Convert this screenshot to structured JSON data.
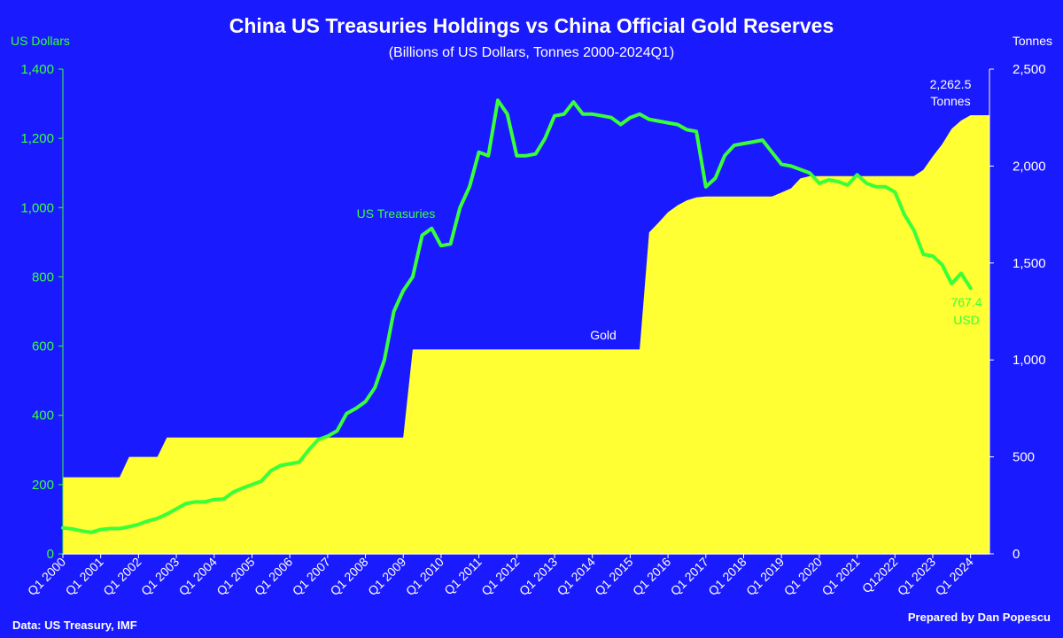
{
  "chart_data": {
    "type": "area",
    "title": "China US Treasuries Holdings vs China Official Gold Reserves",
    "subtitle": "(Billions of US Dollars, Tonnes 2000-2024Q1)",
    "left_axis": {
      "label": "US Dollars",
      "range": [
        0,
        1400
      ],
      "ticks": [
        "0",
        "200",
        "400",
        "600",
        "800",
        "1,000",
        "1,200",
        "1,400"
      ],
      "values": [
        0,
        200,
        400,
        600,
        800,
        1000,
        1200,
        1400
      ]
    },
    "right_axis": {
      "label": "Tonnes",
      "range": [
        0,
        2500
      ],
      "ticks": [
        "0",
        "500",
        "1,000",
        "1,500",
        "2,000",
        "2,500"
      ],
      "values": [
        0,
        500,
        1000,
        1500,
        2000,
        2500
      ]
    },
    "x_range": [
      2000.0,
      2024.5
    ],
    "x_ticks": [
      {
        "t": 2000,
        "label": "Q1 2000"
      },
      {
        "t": 2001,
        "label": "Q1 2001"
      },
      {
        "t": 2002,
        "label": "Q1 2002"
      },
      {
        "t": 2003,
        "label": "Q1 2003"
      },
      {
        "t": 2004,
        "label": "Q1 2004"
      },
      {
        "t": 2005,
        "label": "Q1 2005"
      },
      {
        "t": 2006,
        "label": "Q1 2006"
      },
      {
        "t": 2007,
        "label": "Q1 2007"
      },
      {
        "t": 2008,
        "label": "Q1 2008"
      },
      {
        "t": 2009,
        "label": "Q1 2009"
      },
      {
        "t": 2010,
        "label": "Q1 2010"
      },
      {
        "t": 2011,
        "label": "Q1 2011"
      },
      {
        "t": 2012,
        "label": "Q1 2012"
      },
      {
        "t": 2013,
        "label": "Q1 2013"
      },
      {
        "t": 2014,
        "label": "Q1 2014"
      },
      {
        "t": 2015,
        "label": "Q1 2015"
      },
      {
        "t": 2016,
        "label": "Q1 2016"
      },
      {
        "t": 2017,
        "label": "Q1 2017"
      },
      {
        "t": 2018,
        "label": "Q1 2018"
      },
      {
        "t": 2019,
        "label": "Q1 2019"
      },
      {
        "t": 2020,
        "label": "Q1 2020"
      },
      {
        "t": 2021,
        "label": "Q1 2021"
      },
      {
        "t": 2022,
        "label": "Q12022"
      },
      {
        "t": 2023,
        "label": "Q1 2023"
      },
      {
        "t": 2024,
        "label": "Q1 2024"
      }
    ],
    "series": [
      {
        "name": "US Treasuries",
        "axis": "left",
        "color": "#39ff39",
        "points": [
          [
            2000.0,
            75
          ],
          [
            2000.25,
            72
          ],
          [
            2000.5,
            66
          ],
          [
            2000.75,
            62
          ],
          [
            2001.0,
            70
          ],
          [
            2001.25,
            73
          ],
          [
            2001.5,
            73
          ],
          [
            2001.75,
            78
          ],
          [
            2002.0,
            85
          ],
          [
            2002.25,
            95
          ],
          [
            2002.5,
            102
          ],
          [
            2002.75,
            115
          ],
          [
            2003.0,
            130
          ],
          [
            2003.25,
            145
          ],
          [
            2003.5,
            150
          ],
          [
            2003.75,
            150
          ],
          [
            2004.0,
            157
          ],
          [
            2004.25,
            158
          ],
          [
            2004.5,
            178
          ],
          [
            2004.75,
            190
          ],
          [
            2005.0,
            200
          ],
          [
            2005.25,
            210
          ],
          [
            2005.5,
            240
          ],
          [
            2005.75,
            255
          ],
          [
            2006.0,
            260
          ],
          [
            2006.25,
            265
          ],
          [
            2006.5,
            300
          ],
          [
            2006.75,
            330
          ],
          [
            2007.0,
            340
          ],
          [
            2007.25,
            355
          ],
          [
            2007.5,
            405
          ],
          [
            2007.75,
            420
          ],
          [
            2008.0,
            440
          ],
          [
            2008.25,
            480
          ],
          [
            2008.5,
            560
          ],
          [
            2008.75,
            700
          ],
          [
            2009.0,
            760
          ],
          [
            2009.25,
            800
          ],
          [
            2009.5,
            920
          ],
          [
            2009.75,
            940
          ],
          [
            2010.0,
            890
          ],
          [
            2010.25,
            895
          ],
          [
            2010.5,
            1000
          ],
          [
            2010.75,
            1060
          ],
          [
            2011.0,
            1160
          ],
          [
            2011.25,
            1150
          ],
          [
            2011.5,
            1310
          ],
          [
            2011.75,
            1270
          ],
          [
            2012.0,
            1150
          ],
          [
            2012.25,
            1150
          ],
          [
            2012.5,
            1155
          ],
          [
            2012.75,
            1200
          ],
          [
            2013.0,
            1265
          ],
          [
            2013.25,
            1270
          ],
          [
            2013.5,
            1305
          ],
          [
            2013.75,
            1270
          ],
          [
            2014.0,
            1270
          ],
          [
            2014.25,
            1265
          ],
          [
            2014.5,
            1260
          ],
          [
            2014.75,
            1240
          ],
          [
            2015.0,
            1260
          ],
          [
            2015.25,
            1270
          ],
          [
            2015.5,
            1255
          ],
          [
            2015.75,
            1250
          ],
          [
            2016.0,
            1245
          ],
          [
            2016.25,
            1240
          ],
          [
            2016.5,
            1225
          ],
          [
            2016.75,
            1220
          ],
          [
            2017.0,
            1060
          ],
          [
            2017.25,
            1085
          ],
          [
            2017.5,
            1150
          ],
          [
            2017.75,
            1180
          ],
          [
            2018.0,
            1185
          ],
          [
            2018.25,
            1190
          ],
          [
            2018.5,
            1195
          ],
          [
            2018.75,
            1160
          ],
          [
            2019.0,
            1125
          ],
          [
            2019.25,
            1120
          ],
          [
            2019.5,
            1110
          ],
          [
            2019.75,
            1100
          ],
          [
            2020.0,
            1070
          ],
          [
            2020.25,
            1080
          ],
          [
            2020.5,
            1075
          ],
          [
            2020.75,
            1065
          ],
          [
            2021.0,
            1095
          ],
          [
            2021.25,
            1070
          ],
          [
            2021.5,
            1060
          ],
          [
            2021.75,
            1060
          ],
          [
            2022.0,
            1045
          ],
          [
            2022.25,
            980
          ],
          [
            2022.5,
            935
          ],
          [
            2022.75,
            865
          ],
          [
            2023.0,
            860
          ],
          [
            2023.25,
            835
          ],
          [
            2023.5,
            780
          ],
          [
            2023.75,
            810
          ],
          [
            2024.0,
            767.4
          ]
        ]
      },
      {
        "name": "Gold",
        "axis": "right",
        "color": "#ffff33",
        "points": [
          [
            2000.0,
            395
          ],
          [
            2001.5,
            395
          ],
          [
            2001.75,
            500
          ],
          [
            2002.5,
            500
          ],
          [
            2002.75,
            600
          ],
          [
            2009.0,
            600
          ],
          [
            2009.25,
            1054
          ],
          [
            2015.25,
            1054
          ],
          [
            2015.5,
            1658
          ],
          [
            2015.75,
            1708
          ],
          [
            2016.0,
            1762
          ],
          [
            2016.25,
            1797
          ],
          [
            2016.5,
            1823
          ],
          [
            2016.75,
            1838
          ],
          [
            2017.0,
            1843
          ],
          [
            2018.75,
            1843
          ],
          [
            2019.0,
            1864
          ],
          [
            2019.25,
            1885
          ],
          [
            2019.5,
            1936
          ],
          [
            2019.75,
            1948
          ],
          [
            2022.5,
            1948
          ],
          [
            2022.75,
            1980
          ],
          [
            2023.0,
            2050
          ],
          [
            2023.25,
            2113
          ],
          [
            2023.5,
            2192
          ],
          [
            2023.75,
            2235
          ],
          [
            2024.0,
            2262.5
          ],
          [
            2024.5,
            2262.5
          ]
        ]
      }
    ],
    "annotations": {
      "treasuries_label": "US Treasuries",
      "gold_label": "Gold",
      "gold_end_value": "2,262.5",
      "gold_end_unit": "Tonnes",
      "treasuries_end_value": "767.4",
      "treasuries_end_unit": "USD"
    }
  },
  "footer": {
    "source": "Data: US Treasury, IMF",
    "credit": "Prepared by Dan Popescu"
  },
  "colors": {
    "background": "#1a1aff",
    "treasuries": "#39ff39",
    "gold": "#ffff33"
  }
}
